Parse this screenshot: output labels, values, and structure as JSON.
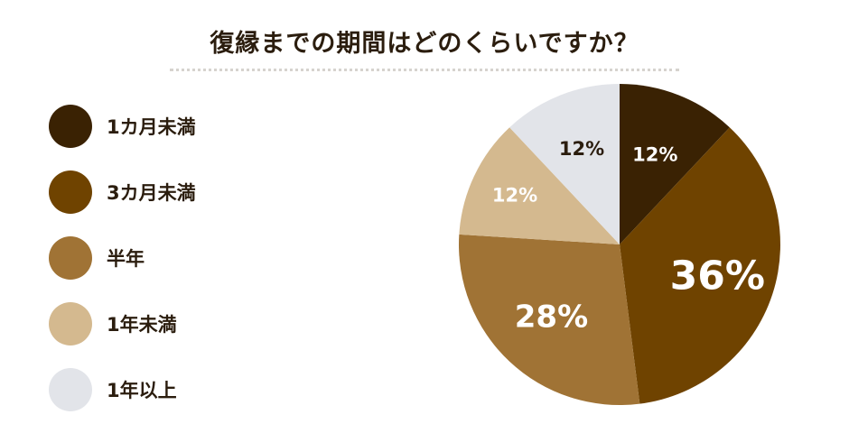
{
  "chart_data": {
    "type": "pie",
    "title": "復縁までの期間はどのくらいですか？",
    "legend_position": "left",
    "slices": [
      {
        "label": "1カ月未満",
        "value": 12,
        "value_label": "12%",
        "color": "#3a2203",
        "text_color": "#ffffff"
      },
      {
        "label": "3カ月未満",
        "value": 36,
        "value_label": "36%",
        "color": "#6f4300",
        "text_color": "#ffffff"
      },
      {
        "label": "半年",
        "value": 28,
        "value_label": "28%",
        "color": "#a07335",
        "text_color": "#ffffff"
      },
      {
        "label": "1年未満",
        "value": 12,
        "value_label": "12%",
        "color": "#d4b98f",
        "text_color": "#ffffff"
      },
      {
        "label": "1年以上",
        "value": 12,
        "value_label": "12%",
        "color": "#e2e4e9",
        "text_color": "#2b1d0e"
      }
    ]
  }
}
